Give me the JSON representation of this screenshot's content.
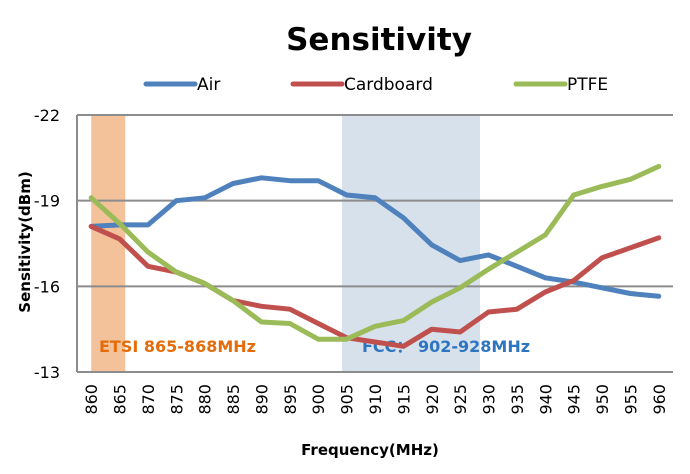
{
  "chart_data": {
    "type": "line",
    "title": "Sensitivity",
    "xlabel": "Frequency(MHz)",
    "ylabel": "Sensitivity(dBm)",
    "ylim": [
      -22,
      -13
    ],
    "y_reversed": true,
    "y_ticks": [
      -22,
      -19,
      -16,
      -13
    ],
    "y_tick_labels": [
      "-22",
      "-19",
      "-16",
      "-13"
    ],
    "grid": true,
    "legend_position": "top",
    "categories": [
      "860",
      "865",
      "870",
      "875",
      "880",
      "885",
      "890",
      "895",
      "900",
      "905",
      "910",
      "915",
      "920",
      "925",
      "930",
      "935",
      "940",
      "945",
      "950",
      "955",
      "960"
    ],
    "series": [
      {
        "name": "Air",
        "color": "#4F81BD",
        "values": [
          -18.1,
          -18.15,
          -18.15,
          -19.0,
          -19.1,
          -19.6,
          -19.8,
          -19.7,
          -19.7,
          -19.2,
          -19.1,
          -18.4,
          -17.45,
          -16.9,
          -17.1,
          -16.7,
          -16.3,
          -16.15,
          -15.95,
          -15.75,
          -15.65
        ]
      },
      {
        "name": "Cardboard",
        "color": "#C0504D",
        "values": [
          -18.1,
          -17.66,
          -16.7,
          -16.5,
          -16.1,
          -15.5,
          -15.3,
          -15.2,
          -14.7,
          -14.2,
          -14.05,
          -13.9,
          -14.5,
          -14.4,
          -15.1,
          -15.2,
          -15.8,
          -16.2,
          -17.0,
          -17.35,
          -17.7
        ]
      },
      {
        "name": "PTFE",
        "color": "#9BBB59",
        "values": [
          -19.1,
          -18.2,
          -17.2,
          -16.5,
          -16.1,
          -15.5,
          -14.75,
          -14.7,
          -14.15,
          -14.15,
          -14.6,
          -14.8,
          -15.45,
          -15.95,
          -16.6,
          -17.2,
          -17.8,
          -19.2,
          -19.5,
          -19.75,
          -20.2
        ]
      }
    ],
    "bands": [
      {
        "name": "ETSI",
        "label": "ETSI 865-868MHz",
        "from_mhz": 860,
        "to_mhz": 866,
        "fill": "#F3C29B",
        "text_color": "#E46C0A"
      },
      {
        "name": "FCC",
        "label": "FCC： 902-928MHz",
        "from_mhz": 904.2,
        "to_mhz": 928.5,
        "fill": "#D6E1EC",
        "text_color": "#2E75C1"
      }
    ]
  }
}
